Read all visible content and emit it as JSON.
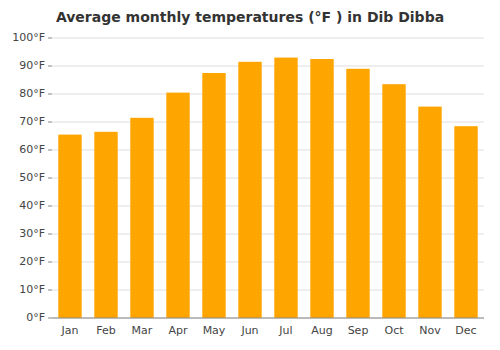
{
  "chart_data": {
    "type": "bar",
    "title": "Average monthly temperatures (°F ) in Dib Dibba",
    "categories": [
      "Jan",
      "Feb",
      "Mar",
      "Apr",
      "May",
      "Jun",
      "Jul",
      "Aug",
      "Sep",
      "Oct",
      "Nov",
      "Dec"
    ],
    "values": [
      65.5,
      66.5,
      71.5,
      80.5,
      87.5,
      91.5,
      93.0,
      92.5,
      89.0,
      83.5,
      75.5,
      68.5
    ],
    "color": "#FFA500",
    "ylim": [
      0,
      100
    ],
    "yticks": [
      {
        "value": 0,
        "label": "0°F"
      },
      {
        "value": 10,
        "label": "10°F"
      },
      {
        "value": 20,
        "label": "20°F"
      },
      {
        "value": 30,
        "label": "30°F"
      },
      {
        "value": 40,
        "label": "40°F"
      },
      {
        "value": 50,
        "label": "50°F"
      },
      {
        "value": 60,
        "label": "60°F"
      },
      {
        "value": 70,
        "label": "70°F"
      },
      {
        "value": 80,
        "label": "80°F"
      },
      {
        "value": 90,
        "label": "90°F"
      },
      {
        "value": 100,
        "label": "100°F"
      }
    ],
    "grid": true
  }
}
